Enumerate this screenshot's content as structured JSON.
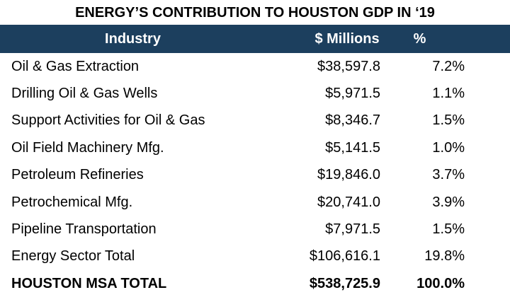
{
  "title": "ENERGY’S CONTRIBUTION TO HOUSTON GDP IN ‘19",
  "table": {
    "header": [
      "Industry",
      "$ Millions",
      "%"
    ],
    "rows": [
      [
        "Oil & Gas Extraction",
        "$38,597.8",
        "7.2%"
      ],
      [
        "Drilling Oil & Gas Wells",
        "$5,971.5",
        "1.1%"
      ],
      [
        "Support Activities for Oil & Gas",
        "$8,346.7",
        "1.5%"
      ],
      [
        "Oil Field Machinery Mfg.",
        "$5,141.5",
        "1.0%"
      ],
      [
        "Petroleum Refineries",
        "$19,846.0",
        "3.7%"
      ],
      [
        "Petrochemical Mfg.",
        "$20,741.0",
        "3.9%"
      ],
      [
        "Pipeline Transportation",
        "$7,971.5",
        "1.5%"
      ],
      [
        "Energy Sector Total",
        "$106,616.1",
        "19.8%"
      ],
      [
        "HOUSTON MSA TOTAL",
        "$538,725.9",
        "100.0%"
      ]
    ]
  }
}
